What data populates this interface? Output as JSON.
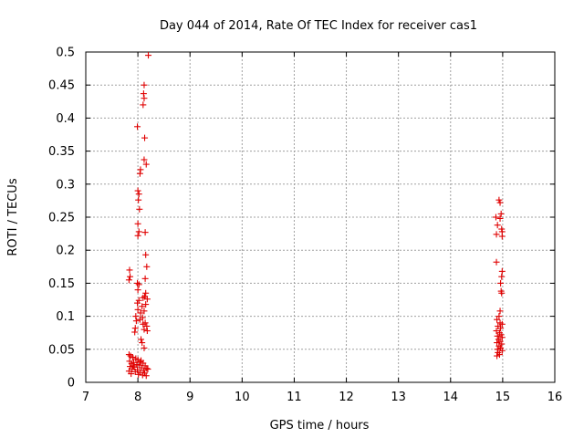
{
  "chart_data": {
    "type": "scatter",
    "title": "Day 044 of 2014, Rate Of TEC Index for receiver cas1",
    "xlabel": "GPS time / hours",
    "ylabel": "ROTI / TECUs",
    "xlim": [
      7,
      16
    ],
    "ylim": [
      0,
      0.5
    ],
    "xticks": [
      "7",
      "8",
      "9",
      "10",
      "11",
      "12",
      "13",
      "14",
      "15",
      "16"
    ],
    "yticks": [
      "0",
      "0.05",
      "0.1",
      "0.15",
      "0.2",
      "0.25",
      "0.3",
      "0.35",
      "0.4",
      "0.45",
      "0.5"
    ],
    "grid": true,
    "marker": "+",
    "color": "#e00000",
    "series": [
      {
        "name": "cas1",
        "points": [
          [
            8.2,
            0.495
          ],
          [
            8.12,
            0.45
          ],
          [
            8.11,
            0.437
          ],
          [
            8.12,
            0.43
          ],
          [
            8.1,
            0.42
          ],
          [
            7.99,
            0.387
          ],
          [
            8.13,
            0.37
          ],
          [
            8.12,
            0.337
          ],
          [
            8.16,
            0.33
          ],
          [
            8.05,
            0.322
          ],
          [
            8.04,
            0.316
          ],
          [
            8.0,
            0.29
          ],
          [
            8.02,
            0.285
          ],
          [
            8.01,
            0.276
          ],
          [
            8.03,
            0.262
          ],
          [
            8.0,
            0.24
          ],
          [
            8.02,
            0.228
          ],
          [
            8.14,
            0.227
          ],
          [
            8.0,
            0.222
          ],
          [
            8.15,
            0.193
          ],
          [
            8.17,
            0.175
          ],
          [
            7.84,
            0.17
          ],
          [
            7.85,
            0.16
          ],
          [
            8.14,
            0.157
          ],
          [
            7.83,
            0.155
          ],
          [
            7.99,
            0.15
          ],
          [
            8.02,
            0.148
          ],
          [
            8.0,
            0.14
          ],
          [
            8.15,
            0.135
          ],
          [
            8.13,
            0.13
          ],
          [
            8.1,
            0.128
          ],
          [
            8.18,
            0.126
          ],
          [
            8.02,
            0.124
          ],
          [
            7.99,
            0.12
          ],
          [
            8.15,
            0.118
          ],
          [
            8.08,
            0.115
          ],
          [
            8.0,
            0.11
          ],
          [
            8.12,
            0.108
          ],
          [
            8.05,
            0.105
          ],
          [
            7.96,
            0.1
          ],
          [
            8.09,
            0.098
          ],
          [
            8.04,
            0.095
          ],
          [
            7.97,
            0.093
          ],
          [
            8.14,
            0.09
          ],
          [
            8.1,
            0.088
          ],
          [
            8.17,
            0.085
          ],
          [
            7.95,
            0.082
          ],
          [
            8.12,
            0.08
          ],
          [
            8.18,
            0.078
          ],
          [
            7.94,
            0.076
          ],
          [
            8.06,
            0.065
          ],
          [
            8.08,
            0.06
          ],
          [
            8.12,
            0.052
          ],
          [
            7.83,
            0.042
          ],
          [
            7.86,
            0.04
          ],
          [
            7.9,
            0.038
          ],
          [
            7.96,
            0.036
          ],
          [
            8.0,
            0.034
          ],
          [
            7.84,
            0.032
          ],
          [
            8.05,
            0.031
          ],
          [
            7.92,
            0.03
          ],
          [
            8.1,
            0.029
          ],
          [
            7.88,
            0.028
          ],
          [
            7.98,
            0.027
          ],
          [
            8.03,
            0.026
          ],
          [
            8.14,
            0.025
          ],
          [
            7.85,
            0.024
          ],
          [
            7.93,
            0.023
          ],
          [
            8.07,
            0.022
          ],
          [
            8.17,
            0.021
          ],
          [
            7.89,
            0.02
          ],
          [
            7.99,
            0.019
          ],
          [
            8.11,
            0.018
          ],
          [
            7.83,
            0.017
          ],
          [
            7.95,
            0.016
          ],
          [
            8.04,
            0.015
          ],
          [
            8.13,
            0.014
          ],
          [
            7.87,
            0.013
          ],
          [
            8.01,
            0.012
          ],
          [
            8.09,
            0.011
          ],
          [
            8.19,
            0.02
          ],
          [
            8.16,
            0.01
          ],
          [
            7.91,
            0.025
          ],
          [
            8.06,
            0.033
          ],
          [
            14.93,
            0.276
          ],
          [
            14.95,
            0.272
          ],
          [
            14.97,
            0.255
          ],
          [
            14.87,
            0.25
          ],
          [
            14.95,
            0.248
          ],
          [
            14.9,
            0.238
          ],
          [
            14.98,
            0.232
          ],
          [
            14.99,
            0.228
          ],
          [
            14.88,
            0.224
          ],
          [
            14.99,
            0.221
          ],
          [
            14.88,
            0.182
          ],
          [
            14.99,
            0.168
          ],
          [
            14.98,
            0.16
          ],
          [
            14.96,
            0.15
          ],
          [
            14.97,
            0.138
          ],
          [
            14.98,
            0.135
          ],
          [
            14.95,
            0.108
          ],
          [
            14.93,
            0.1
          ],
          [
            14.89,
            0.095
          ],
          [
            14.95,
            0.09
          ],
          [
            14.99,
            0.088
          ],
          [
            14.91,
            0.085
          ],
          [
            14.96,
            0.082
          ],
          [
            14.88,
            0.078
          ],
          [
            14.94,
            0.075
          ],
          [
            14.97,
            0.072
          ],
          [
            14.9,
            0.07
          ],
          [
            14.99,
            0.068
          ],
          [
            14.92,
            0.065
          ],
          [
            14.95,
            0.062
          ],
          [
            14.89,
            0.06
          ],
          [
            14.98,
            0.058
          ],
          [
            14.93,
            0.055
          ],
          [
            14.96,
            0.052
          ],
          [
            14.9,
            0.05
          ],
          [
            14.99,
            0.048
          ],
          [
            14.91,
            0.045
          ],
          [
            14.94,
            0.042
          ],
          [
            14.89,
            0.04
          ]
        ]
      }
    ]
  }
}
